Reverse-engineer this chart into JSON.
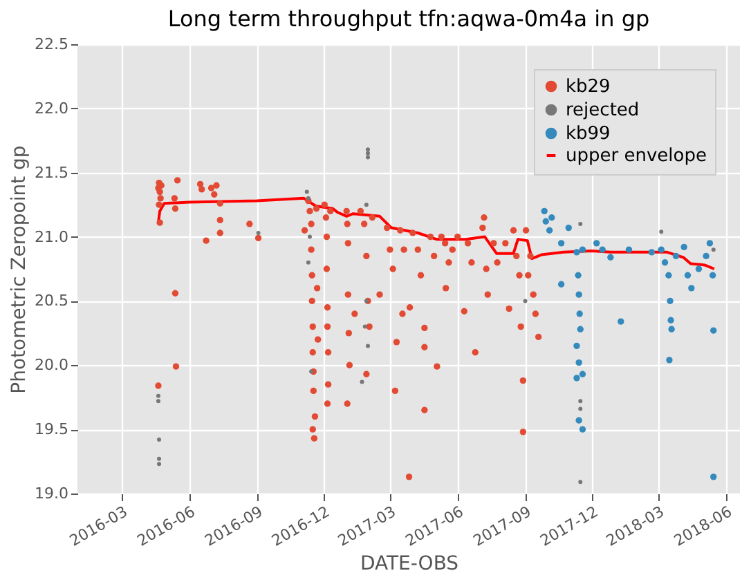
{
  "chart_data": {
    "type": "scatter",
    "title": "Long term throughput  tfn:aqwa-0m4a in gp",
    "xlabel": "DATE-OBS",
    "ylabel": "Photometric Zeropoint gp",
    "xlim": [
      "2016-01-01",
      "2018-06-20"
    ],
    "xticks": [
      "2016-03",
      "2016-06",
      "2016-09",
      "2016-12",
      "2017-03",
      "2017-06",
      "2017-09",
      "2017-12",
      "2018-03",
      "2018-06"
    ],
    "ylim": [
      19.0,
      22.5
    ],
    "yticks": [
      {
        "value": 19.0,
        "label": "19.0"
      },
      19.5,
      {
        "value": 20.0,
        "label": "20.0"
      },
      20.5,
      {
        "value": 21.0,
        "label": "21.0"
      },
      21.5,
      {
        "value": 22.0,
        "label": "22.0"
      },
      22.5
    ],
    "grid": true,
    "legend": "top right",
    "series": [
      {
        "name": "kb29",
        "marker": "circle",
        "color": "#e24a33",
        "x": [
          "2016-04-20",
          "2016-04-21",
          "2016-04-22",
          "2016-04-23",
          "2016-04-21",
          "2016-04-22",
          "2016-04-24",
          "2016-04-20",
          "2016-05-12",
          "2016-05-13",
          "2016-05-13",
          "2016-05-14",
          "2016-05-16",
          "2016-06-16",
          "2016-06-18",
          "2016-06-24",
          "2016-07-01",
          "2016-07-05",
          "2016-07-08",
          "2016-07-13",
          "2016-07-13",
          "2016-07-13",
          "2016-08-22",
          "2016-09-03",
          "2016-11-05",
          "2016-11-10",
          "2016-11-12",
          "2016-11-14",
          "2016-11-14",
          "2016-11-15",
          "2016-11-15",
          "2016-11-16",
          "2016-11-16",
          "2016-11-17",
          "2016-11-17",
          "2016-11-16",
          "2016-11-18",
          "2016-11-19",
          "2016-11-21",
          "2016-11-22",
          "2016-11-23",
          "2016-12-02",
          "2016-12-04",
          "2016-12-05",
          "2016-12-05",
          "2016-12-06",
          "2016-12-06",
          "2016-12-07",
          "2016-12-07",
          "2016-12-06",
          "2016-12-10",
          "2017-01-01",
          "2017-01-02",
          "2017-01-03",
          "2017-01-03",
          "2017-01-04",
          "2017-01-05",
          "2017-01-02",
          "2017-01-12",
          "2017-01-20",
          "2017-01-25",
          "2017-01-28",
          "2017-01-30",
          "2017-02-01",
          "2017-01-28",
          "2017-02-05",
          "2017-02-15",
          "2017-02-25",
          "2017-03-01",
          "2017-03-05",
          "2017-03-10",
          "2017-03-08",
          "2017-03-15",
          "2017-03-20",
          "2017-03-18",
          "2017-03-28",
          "2017-03-27",
          "2017-04-01",
          "2017-04-08",
          "2017-04-12",
          "2017-04-17",
          "2017-04-17",
          "2017-04-17",
          "2017-04-25",
          "2017-04-30",
          "2017-05-04",
          "2017-05-10",
          "2017-05-15",
          "2017-05-20",
          "2017-05-25",
          "2017-05-16",
          "2017-06-01",
          "2017-06-10",
          "2017-06-15",
          "2017-06-20",
          "2017-06-25",
          "2017-07-05",
          "2017-07-07",
          "2017-07-10",
          "2017-07-12",
          "2017-07-20",
          "2017-07-25",
          "2017-08-05",
          "2017-08-10",
          "2017-08-16",
          "2017-08-20",
          "2017-08-24",
          "2017-08-26",
          "2017-08-29",
          "2017-08-29",
          "2017-09-02",
          "2017-09-05",
          "2017-09-08",
          "2017-09-12",
          "2017-09-15",
          "2017-09-19"
        ],
        "values": [
          21.38,
          21.42,
          21.35,
          21.3,
          21.25,
          21.11,
          21.4,
          19.84,
          21.3,
          21.22,
          20.56,
          19.99,
          21.44,
          21.41,
          21.37,
          20.97,
          21.38,
          21.33,
          21.4,
          21.26,
          21.13,
          21.03,
          21.1,
          20.99,
          21.05,
          21.28,
          21.2,
          21.1,
          20.9,
          20.7,
          20.5,
          20.3,
          20.1,
          19.95,
          19.8,
          19.5,
          19.43,
          19.6,
          21.22,
          20.6,
          20.2,
          21.25,
          21.15,
          21.0,
          20.75,
          20.45,
          20.3,
          20.1,
          19.85,
          19.7,
          21.2,
          21.2,
          21.1,
          20.95,
          20.55,
          20.25,
          20.0,
          19.7,
          20.4,
          21.2,
          21.1,
          20.85,
          20.5,
          20.3,
          19.93,
          21.15,
          20.55,
          21.07,
          20.9,
          20.75,
          20.18,
          19.8,
          21.05,
          20.9,
          20.4,
          20.45,
          19.13,
          21.03,
          20.9,
          20.7,
          20.29,
          20.14,
          19.65,
          21.0,
          20.85,
          19.99,
          21.0,
          20.95,
          20.8,
          20.9,
          20.6,
          21.0,
          20.42,
          20.95,
          20.8,
          20.1,
          21.07,
          21.15,
          20.75,
          20.55,
          20.95,
          20.8,
          20.95,
          20.44,
          21.05,
          20.85,
          20.7,
          20.3,
          19.88,
          19.48,
          21.05,
          20.7,
          20.85,
          20.55,
          20.4,
          20.22
        ]
      },
      {
        "name": "rejected",
        "marker": "circle",
        "color": "#777777",
        "x": [
          "2016-04-20",
          "2016-04-20",
          "2016-04-21",
          "2016-04-21",
          "2016-04-21",
          "2016-09-03",
          "2016-11-08",
          "2016-11-10",
          "2016-11-12",
          "2016-11-10",
          "2016-11-14",
          "2017-01-30",
          "2017-01-30",
          "2017-01-30",
          "2017-01-28",
          "2017-01-28",
          "2017-01-26",
          "2017-01-30",
          "2017-01-22",
          "2017-09-01",
          "2017-11-15",
          "2017-11-15",
          "2017-11-15",
          "2017-11-15",
          "2018-03-05",
          "2018-05-15"
        ],
        "values": [
          19.76,
          19.72,
          19.42,
          19.27,
          19.23,
          21.03,
          21.35,
          21.3,
          21.0,
          20.8,
          19.95,
          21.65,
          21.62,
          21.68,
          21.25,
          20.5,
          20.3,
          20.15,
          19.87,
          20.5,
          21.1,
          19.72,
          19.66,
          19.09,
          21.04,
          20.9
        ]
      },
      {
        "name": "kb99",
        "marker": "circle",
        "color": "#348abd",
        "x": [
          "2017-09-27",
          "2017-09-29",
          "2017-10-04",
          "2017-10-07",
          "2017-10-20",
          "2017-10-20",
          "2017-10-30",
          "2017-11-10",
          "2017-11-12",
          "2017-11-13",
          "2017-11-14",
          "2017-11-15",
          "2017-11-10",
          "2017-11-13",
          "2017-11-18",
          "2017-11-10",
          "2017-11-13",
          "2017-11-18",
          "2017-11-18",
          "2017-12-07",
          "2017-12-15",
          "2017-12-26",
          "2018-01-09",
          "2018-01-20",
          "2018-02-20",
          "2018-03-05",
          "2018-03-10",
          "2018-03-15",
          "2018-03-17",
          "2018-03-18",
          "2018-03-19",
          "2018-03-16",
          "2018-03-25",
          "2018-04-05",
          "2018-04-10",
          "2018-04-15",
          "2018-04-25",
          "2018-05-05",
          "2018-05-10",
          "2018-05-14",
          "2018-05-15",
          "2018-05-15"
        ],
        "values": [
          21.2,
          21.12,
          21.05,
          21.15,
          20.95,
          20.63,
          21.07,
          20.88,
          20.7,
          20.55,
          20.4,
          20.28,
          20.15,
          20.02,
          19.93,
          19.9,
          19.57,
          19.5,
          20.9,
          20.95,
          20.9,
          20.84,
          20.34,
          20.9,
          20.88,
          20.9,
          20.8,
          20.7,
          20.5,
          20.35,
          20.28,
          20.04,
          20.85,
          20.92,
          20.7,
          20.6,
          20.75,
          20.85,
          20.95,
          20.7,
          20.27,
          19.13
        ]
      },
      {
        "name": "upper envelope",
        "type": "line",
        "line_style": "solid",
        "color": "#ff0000",
        "x": [
          "2016-04-20",
          "2016-04-22",
          "2016-04-28",
          "2016-06-01",
          "2016-09-01",
          "2016-11-04",
          "2016-11-20",
          "2016-12-13",
          "2016-12-20",
          "2017-01-01",
          "2017-01-10",
          "2017-02-15",
          "2017-03-03",
          "2017-04-08",
          "2017-05-04",
          "2017-06-12",
          "2017-07-08",
          "2017-07-24",
          "2017-08-16",
          "2017-08-22",
          "2017-09-04",
          "2017-09-10",
          "2017-09-23",
          "2017-10-23",
          "2017-11-30",
          "2017-12-26",
          "2018-03-13",
          "2018-04-04",
          "2018-04-14",
          "2018-05-03",
          "2018-05-16"
        ],
        "values": [
          21.11,
          21.2,
          21.26,
          21.27,
          21.28,
          21.3,
          21.24,
          21.22,
          21.19,
          21.16,
          21.18,
          21.16,
          21.07,
          21.03,
          20.98,
          20.98,
          21.0,
          20.87,
          20.87,
          20.98,
          20.97,
          20.83,
          20.86,
          20.88,
          20.89,
          20.88,
          20.88,
          20.84,
          20.79,
          20.78,
          20.75
        ]
      }
    ]
  }
}
